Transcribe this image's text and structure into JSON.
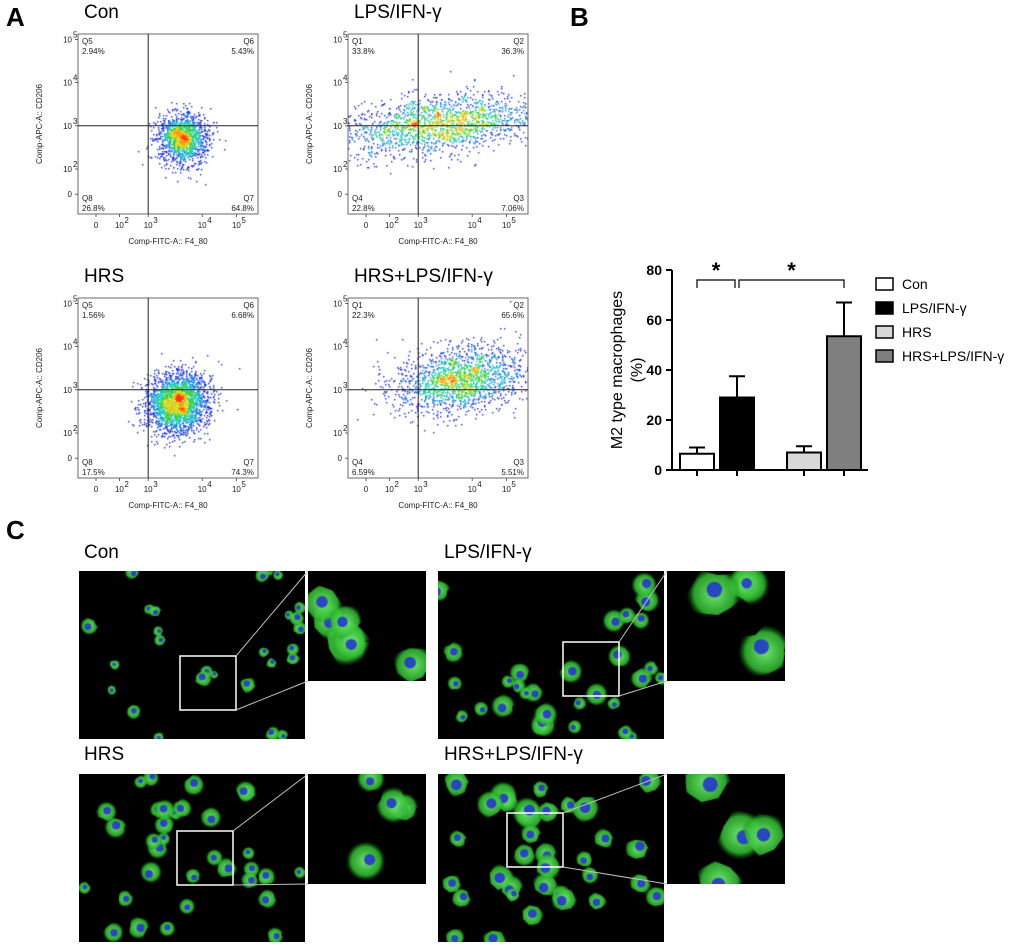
{
  "panels": {
    "a": "A",
    "b": "B",
    "c": "C"
  },
  "flow_plots": [
    {
      "title": "Con",
      "quadrants": {
        "ul_name": "Q5",
        "ul_val": "2.94%",
        "ur_name": "Q6",
        "ur_val": "5.43%",
        "ll_name": "Q8",
        "ll_val": "26.8%",
        "lr_name": "Q7",
        "lr_val": "64.8%"
      }
    },
    {
      "title": "LPS/IFN-γ",
      "quadrants": {
        "ul_name": "Q1",
        "ul_val": "33.8%",
        "ur_name": "Q2",
        "ur_val": "36.3%",
        "ll_name": "Q4",
        "ll_val": "22.8%",
        "lr_name": "Q3",
        "lr_val": "7.06%"
      }
    },
    {
      "title": "HRS",
      "quadrants": {
        "ul_name": "Q5",
        "ul_val": "1.56%",
        "ur_name": "Q6",
        "ur_val": "6.68%",
        "ll_name": "Q8",
        "ll_val": "17.5%",
        "lr_name": "Q7",
        "lr_val": "74.3%"
      }
    },
    {
      "title": "HRS+LPS/IFN-γ",
      "quadrants": {
        "ul_name": "Q1",
        "ul_val": "22.3%",
        "ur_name": "Q2",
        "ur_val": "65.6%",
        "ll_name": "Q4",
        "ll_val": "6.59%",
        "lr_name": "Q3",
        "lr_val": "5.51%"
      }
    }
  ],
  "flow_axes": {
    "xlabel": "Comp-FITC-A:: F4_80",
    "ylabel": "Comp-APC-A:: CD206",
    "xticks": [
      "0",
      "10",
      "10",
      "10",
      "10"
    ],
    "xexp": [
      "",
      "2",
      "3",
      "4",
      "5"
    ],
    "yticks": [
      "10",
      "10",
      "10",
      "10",
      "0"
    ],
    "yexp": [
      "5",
      "4",
      "3",
      "2",
      ""
    ]
  },
  "chart_data": {
    "type": "bar",
    "categories": [
      "Con",
      "LPS/IFN-γ",
      "HRS",
      "HRS+LPS/IFN-γ"
    ],
    "values": [
      6.5,
      29,
      7,
      53.5
    ],
    "errors": [
      2.5,
      8.5,
      2.5,
      13.5
    ],
    "colors": [
      "#ffffff",
      "#000000",
      "#d8d8d8",
      "#7f7f7f"
    ],
    "ylabel_line1": "M2 type macrophages",
    "ylabel_line2": "(%)",
    "ylim": [
      0,
      80
    ],
    "yticks": [
      0,
      20,
      40,
      60,
      80
    ],
    "significance": [
      {
        "from": 0,
        "to": 1,
        "label": "*"
      },
      {
        "from": 1,
        "to": 3,
        "label": "*"
      }
    ],
    "legend": [
      "Con",
      "LPS/IFN-γ",
      "HRS",
      "HRS+LPS/IFN-γ"
    ]
  },
  "micro_titles": [
    "Con",
    "LPS/IFN-γ",
    "HRS",
    "HRS+LPS/IFN-γ"
  ],
  "colors": {
    "cell_green": "#3fcf3f",
    "nucleus_blue": "#2438c8",
    "density_low": "#1a2ad6",
    "density_high": "#ff3a00"
  }
}
